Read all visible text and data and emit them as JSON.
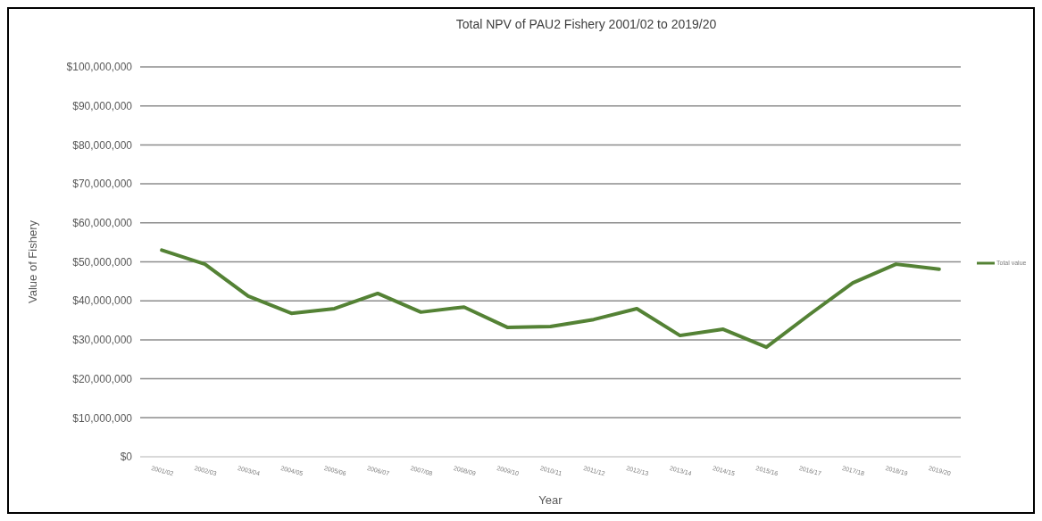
{
  "chart_data": {
    "type": "line",
    "title": "Total NPV of PAU2 Fishery 2001/02 to 2019/20",
    "xlabel": "Year",
    "ylabel": "Value of Fishery",
    "categories": [
      "2001/02",
      "2002/03",
      "2003/04",
      "2004/05",
      "2005/06",
      "2006/07",
      "2007/08",
      "2008/09",
      "2009/10",
      "2010/11",
      "2011/12",
      "2012/13",
      "2013/14",
      "2014/15",
      "2015/16",
      "2016/17",
      "2017/18",
      "2018/19",
      "2019/20"
    ],
    "series": [
      {
        "name": "Total value",
        "color": "#548235",
        "values": [
          53000000,
          49400000,
          41200000,
          36800000,
          38000000,
          41900000,
          37100000,
          38400000,
          33200000,
          33400000,
          35200000,
          38000000,
          31100000,
          32700000,
          28100000,
          36500000,
          44600000,
          49400000,
          48100000
        ]
      }
    ],
    "ylim": [
      0,
      100000000
    ],
    "yticks": [
      {
        "value": 0,
        "label": "$0"
      },
      {
        "value": 10000000,
        "label": "$10,000,000"
      },
      {
        "value": 20000000,
        "label": "$20,000,000"
      },
      {
        "value": 30000000,
        "label": "$30,000,000"
      },
      {
        "value": 40000000,
        "label": "$40,000,000"
      },
      {
        "value": 50000000,
        "label": "$50,000,000"
      },
      {
        "value": 60000000,
        "label": "$60,000,000"
      },
      {
        "value": 70000000,
        "label": "$70,000,000"
      },
      {
        "value": 80000000,
        "label": "$80,000,000"
      },
      {
        "value": 90000000,
        "label": "$90,000,000"
      },
      {
        "value": 100000000,
        "label": "$100,000,000"
      }
    ],
    "grid": "y",
    "legend": "right",
    "marker": "none",
    "line_style": "solid"
  }
}
